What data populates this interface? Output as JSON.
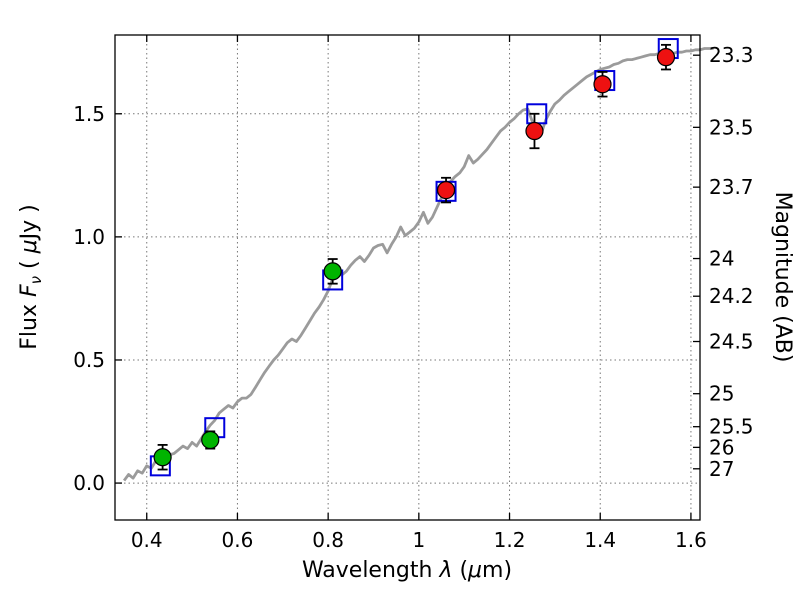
{
  "figure": {
    "background": "#ffffff"
  },
  "chart_data": {
    "type": "line+scatter",
    "title": "",
    "xlabel_parts": {
      "text1": "Wavelength  ",
      "sym1": "λ",
      "text2": " (",
      "sym2": "μ",
      "text3": "m)"
    },
    "ylabel_left_parts": {
      "text1": "Flux  ",
      "sym1": "F",
      "sub": "ν",
      "text2": "  ( ",
      "sym2": "μ",
      "text3": "Jy )"
    },
    "ylabel_right": "Magnitude (AB)",
    "xlim": [
      0.33,
      1.62
    ],
    "ylim": [
      -0.15,
      1.82
    ],
    "grid": "dotted",
    "legend": "none",
    "x_ticks": [
      {
        "v": 0.4,
        "label": "0.4"
      },
      {
        "v": 0.6,
        "label": "0.6"
      },
      {
        "v": 0.8,
        "label": "0.8"
      },
      {
        "v": 1.0,
        "label": "1"
      },
      {
        "v": 1.2,
        "label": "1.2"
      },
      {
        "v": 1.4,
        "label": "1.4"
      },
      {
        "v": 1.6,
        "label": "1.6"
      }
    ],
    "y_ticks_left": [
      {
        "v": 0.0,
        "label": "0.0"
      },
      {
        "v": 0.5,
        "label": "0.5"
      },
      {
        "v": 1.0,
        "label": "1.0"
      },
      {
        "v": 1.5,
        "label": "1.5"
      }
    ],
    "y_ticks_right": [
      {
        "label": "23.3",
        "flux": 1.738
      },
      {
        "label": "23.5",
        "flux": 1.445
      },
      {
        "label": "23.7",
        "flux": 1.202
      },
      {
        "label": "24",
        "flux": 0.912
      },
      {
        "label": "24.2",
        "flux": 0.759
      },
      {
        "label": "24.5",
        "flux": 0.575
      },
      {
        "label": "25",
        "flux": 0.363
      },
      {
        "label": "25.5",
        "flux": 0.229
      },
      {
        "label": "26",
        "flux": 0.145
      },
      {
        "label": "27",
        "flux": 0.058
      }
    ],
    "colors": {
      "spectrum": "#9b9b9b",
      "green": "#00b400",
      "red": "#ee1111",
      "blue": "#0000dd",
      "errorbar": "#000000",
      "grid": "#777777",
      "frame": "#000000"
    },
    "series": [
      {
        "name": "model-spectrum",
        "kind": "line",
        "color_key": "spectrum",
        "points": [
          [
            0.35,
            0.01
          ],
          [
            0.36,
            0.035
          ],
          [
            0.37,
            0.02
          ],
          [
            0.38,
            0.05
          ],
          [
            0.39,
            0.04
          ],
          [
            0.4,
            0.07
          ],
          [
            0.41,
            0.06
          ],
          [
            0.42,
            0.09
          ],
          [
            0.43,
            0.105
          ],
          [
            0.44,
            0.09
          ],
          [
            0.45,
            0.115
          ],
          [
            0.46,
            0.12
          ],
          [
            0.47,
            0.135
          ],
          [
            0.48,
            0.15
          ],
          [
            0.49,
            0.14
          ],
          [
            0.5,
            0.165
          ],
          [
            0.51,
            0.15
          ],
          [
            0.52,
            0.18
          ],
          [
            0.53,
            0.21
          ],
          [
            0.54,
            0.235
          ],
          [
            0.55,
            0.255
          ],
          [
            0.56,
            0.285
          ],
          [
            0.57,
            0.3
          ],
          [
            0.58,
            0.315
          ],
          [
            0.59,
            0.305
          ],
          [
            0.6,
            0.33
          ],
          [
            0.61,
            0.345
          ],
          [
            0.62,
            0.345
          ],
          [
            0.63,
            0.36
          ],
          [
            0.64,
            0.39
          ],
          [
            0.65,
            0.42
          ],
          [
            0.66,
            0.45
          ],
          [
            0.67,
            0.475
          ],
          [
            0.68,
            0.5
          ],
          [
            0.69,
            0.52
          ],
          [
            0.7,
            0.545
          ],
          [
            0.71,
            0.57
          ],
          [
            0.72,
            0.585
          ],
          [
            0.73,
            0.575
          ],
          [
            0.74,
            0.6
          ],
          [
            0.75,
            0.63
          ],
          [
            0.76,
            0.66
          ],
          [
            0.77,
            0.69
          ],
          [
            0.78,
            0.715
          ],
          [
            0.79,
            0.745
          ],
          [
            0.8,
            0.78
          ],
          [
            0.81,
            0.83
          ],
          [
            0.82,
            0.88
          ],
          [
            0.83,
            0.845
          ],
          [
            0.84,
            0.86
          ],
          [
            0.85,
            0.885
          ],
          [
            0.86,
            0.905
          ],
          [
            0.87,
            0.92
          ],
          [
            0.88,
            0.9
          ],
          [
            0.89,
            0.925
          ],
          [
            0.9,
            0.955
          ],
          [
            0.91,
            0.965
          ],
          [
            0.92,
            0.97
          ],
          [
            0.93,
            0.935
          ],
          [
            0.94,
            0.97
          ],
          [
            0.95,
            1.0
          ],
          [
            0.96,
            1.04
          ],
          [
            0.97,
            1.005
          ],
          [
            0.98,
            1.02
          ],
          [
            0.99,
            1.035
          ],
          [
            1.0,
            1.06
          ],
          [
            1.01,
            1.1
          ],
          [
            1.02,
            1.055
          ],
          [
            1.03,
            1.08
          ],
          [
            1.04,
            1.12
          ],
          [
            1.05,
            1.16
          ],
          [
            1.06,
            1.2
          ],
          [
            1.07,
            1.225
          ],
          [
            1.08,
            1.245
          ],
          [
            1.09,
            1.26
          ],
          [
            1.1,
            1.285
          ],
          [
            1.11,
            1.33
          ],
          [
            1.12,
            1.3
          ],
          [
            1.13,
            1.315
          ],
          [
            1.14,
            1.335
          ],
          [
            1.15,
            1.355
          ],
          [
            1.16,
            1.38
          ],
          [
            1.17,
            1.405
          ],
          [
            1.18,
            1.43
          ],
          [
            1.19,
            1.445
          ],
          [
            1.2,
            1.465
          ],
          [
            1.21,
            1.48
          ],
          [
            1.22,
            1.5
          ],
          [
            1.23,
            1.515
          ],
          [
            1.24,
            1.52
          ],
          [
            1.25,
            1.47
          ],
          [
            1.26,
            1.435
          ],
          [
            1.27,
            1.42
          ],
          [
            1.28,
            1.475
          ],
          [
            1.29,
            1.51
          ],
          [
            1.3,
            1.54
          ],
          [
            1.31,
            1.555
          ],
          [
            1.32,
            1.575
          ],
          [
            1.33,
            1.59
          ],
          [
            1.34,
            1.605
          ],
          [
            1.35,
            1.62
          ],
          [
            1.36,
            1.635
          ],
          [
            1.37,
            1.65
          ],
          [
            1.38,
            1.66
          ],
          [
            1.39,
            1.67
          ],
          [
            1.4,
            1.68
          ],
          [
            1.41,
            1.685
          ],
          [
            1.42,
            1.69
          ],
          [
            1.43,
            1.7
          ],
          [
            1.44,
            1.705
          ],
          [
            1.45,
            1.715
          ],
          [
            1.46,
            1.72
          ],
          [
            1.47,
            1.72
          ],
          [
            1.48,
            1.725
          ],
          [
            1.49,
            1.73
          ],
          [
            1.5,
            1.735
          ],
          [
            1.51,
            1.74
          ],
          [
            1.52,
            1.74
          ],
          [
            1.53,
            1.745
          ],
          [
            1.54,
            1.75
          ],
          [
            1.55,
            1.75
          ],
          [
            1.56,
            1.745
          ],
          [
            1.57,
            1.75
          ],
          [
            1.58,
            1.75
          ],
          [
            1.59,
            1.755
          ],
          [
            1.6,
            1.755
          ],
          [
            1.61,
            1.76
          ],
          [
            1.62,
            1.76
          ],
          [
            1.63,
            1.765
          ],
          [
            1.65,
            1.765
          ]
        ]
      },
      {
        "name": "observed-photometry",
        "kind": "scatter-errorbar",
        "marker": "circle",
        "points": [
          {
            "x": 0.435,
            "y": 0.105,
            "yerr": 0.05,
            "color_key": "green"
          },
          {
            "x": 0.54,
            "y": 0.175,
            "yerr": 0.035,
            "color_key": "green"
          },
          {
            "x": 0.81,
            "y": 0.86,
            "yerr": 0.05,
            "color_key": "green"
          },
          {
            "x": 1.06,
            "y": 1.19,
            "yerr": 0.05,
            "color_key": "red"
          },
          {
            "x": 1.255,
            "y": 1.43,
            "yerr": 0.07,
            "color_key": "red"
          },
          {
            "x": 1.405,
            "y": 1.62,
            "yerr": 0.05,
            "color_key": "red"
          },
          {
            "x": 1.545,
            "y": 1.73,
            "yerr": 0.05,
            "color_key": "red"
          }
        ]
      },
      {
        "name": "model-photometry",
        "kind": "scatter",
        "marker": "open-square",
        "color_key": "blue",
        "points": [
          {
            "x": 0.43,
            "y": 0.07
          },
          {
            "x": 0.55,
            "y": 0.225
          },
          {
            "x": 0.81,
            "y": 0.825
          },
          {
            "x": 1.06,
            "y": 1.185
          },
          {
            "x": 1.26,
            "y": 1.5
          },
          {
            "x": 1.41,
            "y": 1.635
          },
          {
            "x": 1.55,
            "y": 1.765
          }
        ]
      }
    ]
  }
}
